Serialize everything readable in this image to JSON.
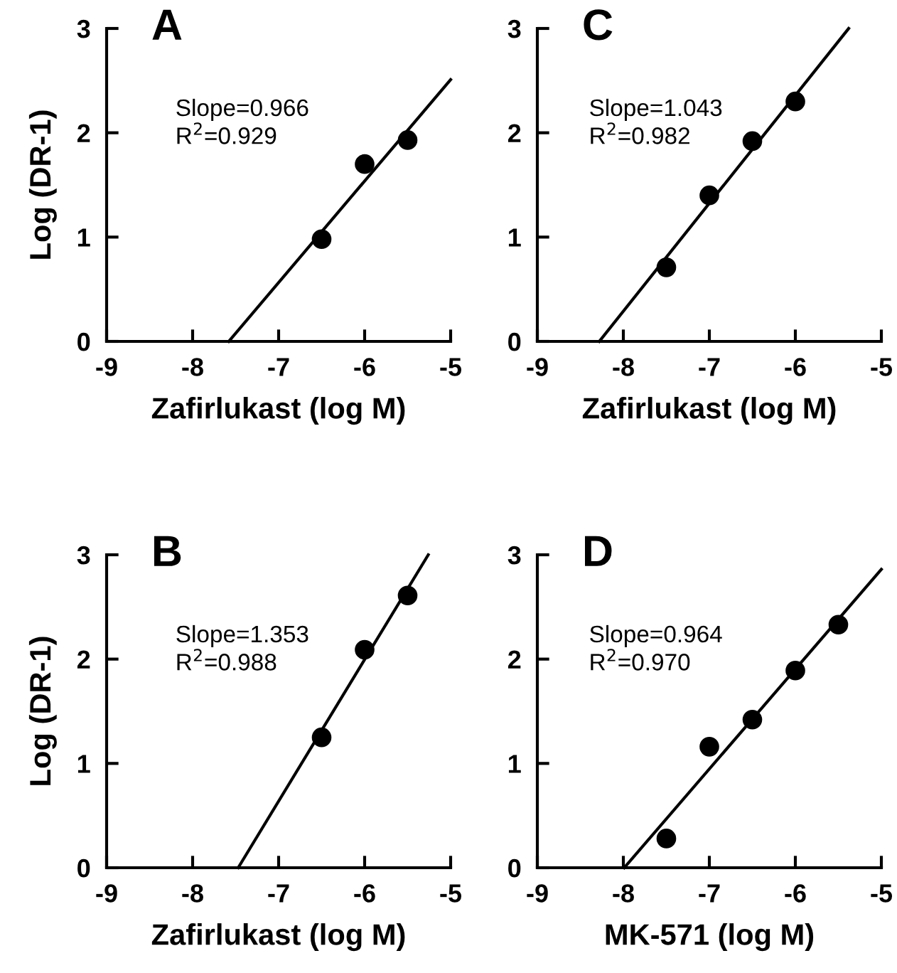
{
  "chart_data": [
    {
      "type": "scatter",
      "title": "A",
      "ylabel": "Log (DR-1)",
      "xlabel": "Zafirlukast (log M)",
      "annotations": [
        "Slope=0.966",
        "R$^{2}$=0.929"
      ],
      "xlim": [
        -9,
        -5
      ],
      "ylim": [
        0,
        3
      ],
      "xticks": [
        {
          "value": -9,
          "label": "-9"
        },
        {
          "value": -8,
          "label": "-8"
        },
        {
          "value": -7,
          "label": "-7"
        },
        {
          "value": -6,
          "label": "-6"
        },
        {
          "value": -5,
          "label": "-5"
        }
      ],
      "yticks": [
        0,
        1,
        2,
        3
      ],
      "grid": false,
      "legend": false,
      "marker": "circle",
      "series": [
        {
          "color": "#000000",
          "x": [
            -6.5,
            -6,
            -5.5
          ],
          "values": [
            0.98,
            1.7,
            1.93
          ]
        },
        {
          "type": "line",
          "color": "#000000",
          "line_style": "solid",
          "marker": "none",
          "x": [
            -7.58,
            -5
          ],
          "values": [
            0,
            2.51
          ]
        }
      ]
    },
    {
      "type": "scatter",
      "title": "C",
      "xlabel": "Zafirlukast (log M)",
      "annotations": [
        "Slope=1.043",
        "R$^{2}$=0.982"
      ],
      "xlim": [
        -9,
        -5
      ],
      "ylim": [
        0,
        3
      ],
      "xticks": [
        {
          "value": -9,
          "label": "-9"
        },
        {
          "value": -8,
          "label": "-8"
        },
        {
          "value": -7,
          "label": "-7"
        },
        {
          "value": -6,
          "label": "-6"
        },
        {
          "value": -5,
          "label": "-5"
        }
      ],
      "yticks": [
        0,
        1,
        2,
        3
      ],
      "grid": false,
      "legend": false,
      "marker": "circle",
      "series": [
        {
          "color": "#000000",
          "x": [
            -7.5,
            -7,
            -6.5,
            -6
          ],
          "values": [
            0.71,
            1.4,
            1.92,
            2.3
          ]
        },
        {
          "type": "line",
          "color": "#000000",
          "line_style": "solid",
          "marker": "none",
          "x": [
            -8.28,
            -5.38
          ],
          "values": [
            0,
            3
          ]
        }
      ]
    },
    {
      "type": "scatter",
      "title": "B",
      "ylabel": "Log (DR-1)",
      "xlabel": "Zafirlukast (log M)",
      "annotations": [
        "Slope=1.353",
        "R$^{2}$=0.988"
      ],
      "xlim": [
        -9,
        -5
      ],
      "ylim": [
        0,
        3
      ],
      "xticks": [
        {
          "value": -9,
          "label": "-9"
        },
        {
          "value": -8,
          "label": "-8"
        },
        {
          "value": -7,
          "label": "-7"
        },
        {
          "value": -6,
          "label": "-6"
        },
        {
          "value": -5,
          "label": "-5"
        }
      ],
      "yticks": [
        0,
        1,
        2,
        3
      ],
      "grid": false,
      "legend": false,
      "marker": "circle",
      "series": [
        {
          "color": "#000000",
          "x": [
            -6.5,
            -6,
            -5.5
          ],
          "values": [
            1.25,
            2.09,
            2.61
          ]
        },
        {
          "type": "line",
          "color": "#000000",
          "line_style": "solid",
          "marker": "none",
          "x": [
            -7.47,
            -5.26
          ],
          "values": [
            0,
            3
          ]
        }
      ]
    },
    {
      "type": "scatter",
      "title": "D",
      "xlabel": "MK-571 (log M)",
      "annotations": [
        "Slope=0.964",
        "R$^{2}$=0.970"
      ],
      "xlim": [
        -9,
        -5
      ],
      "ylim": [
        0,
        3
      ],
      "xticks": [
        {
          "value": -9,
          "label": "-9"
        },
        {
          "value": -8,
          "label": "-8"
        },
        {
          "value": -7,
          "label": "-7"
        },
        {
          "value": -6,
          "label": "-6"
        },
        {
          "value": -5,
          "label": "-5"
        }
      ],
      "yticks": [
        0,
        1,
        2,
        3
      ],
      "grid": false,
      "legend": false,
      "marker": "circle",
      "series": [
        {
          "color": "#000000",
          "x": [
            -7.5,
            -7,
            -6.5,
            -6,
            -5.5
          ],
          "values": [
            0.28,
            1.16,
            1.42,
            1.89,
            2.33
          ]
        },
        {
          "type": "line",
          "color": "#000000",
          "line_style": "solid",
          "marker": "none",
          "x": [
            -7.99,
            -5
          ],
          "values": [
            0,
            2.86
          ]
        }
      ]
    }
  ]
}
